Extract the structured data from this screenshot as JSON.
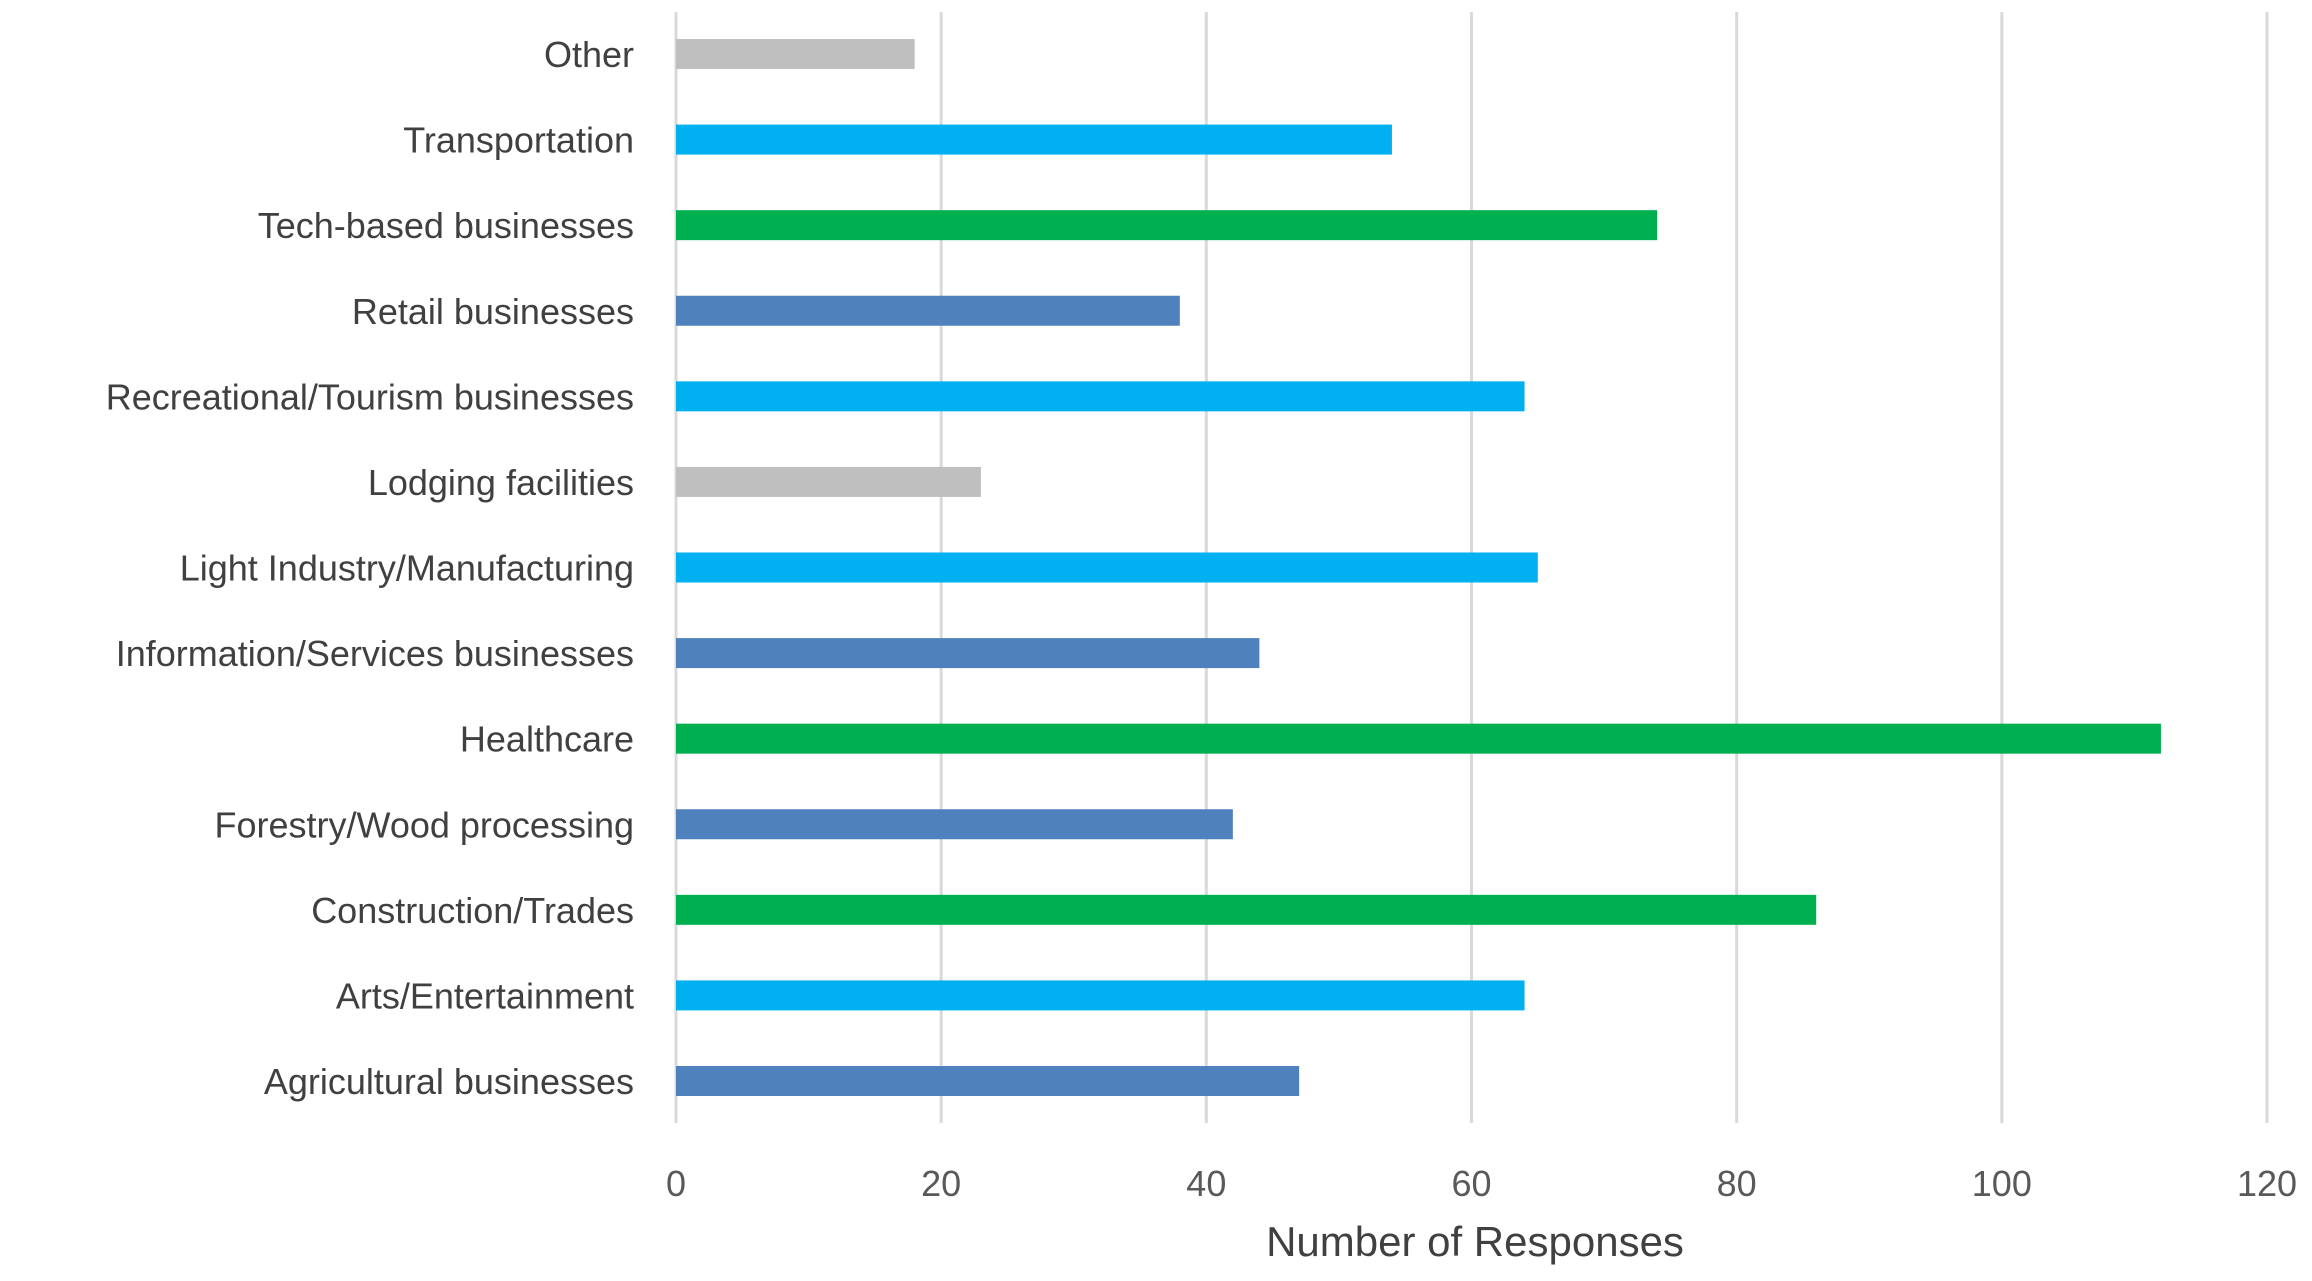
{
  "chart_data": {
    "type": "bar",
    "orientation": "horizontal",
    "title": "",
    "xlabel": "Number of Responses",
    "ylabel": "",
    "xlim": [
      0,
      120
    ],
    "x_ticks": [
      0,
      20,
      40,
      60,
      80,
      100,
      120
    ],
    "grid": "vertical",
    "legend": "none",
    "categories": [
      "Agricultural businesses",
      "Arts/Entertainment",
      "Construction/Trades",
      "Forestry/Wood processing",
      "Healthcare",
      "Information/Services businesses",
      "Light Industry/Manufacturing",
      "Lodging facilities",
      "Recreational/Tourism businesses",
      "Retail businesses",
      "Tech-based businesses",
      "Transportation",
      "Other"
    ],
    "values": [
      47,
      64,
      86,
      42,
      112,
      44,
      65,
      23,
      64,
      38,
      74,
      54,
      18
    ],
    "bar_colors": [
      "#4f81bd",
      "#00b0f0",
      "#00b050",
      "#4f81bd",
      "#00b050",
      "#4f81bd",
      "#00b0f0",
      "#bfbfbf",
      "#00b0f0",
      "#4f81bd",
      "#00b050",
      "#00b0f0",
      "#bfbfbf"
    ],
    "gridline_color": "#d9d9d9"
  }
}
